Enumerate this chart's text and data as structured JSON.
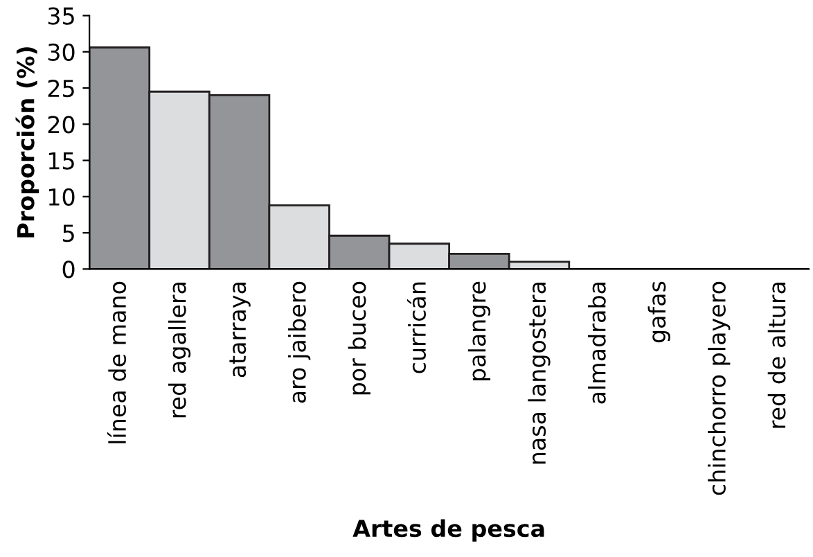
{
  "chart_data": {
    "type": "bar",
    "xlabel": "Artes de pesca",
    "ylabel": "Proporción (%)",
    "categories": [
      "línea de mano",
      "red agallera",
      "atarraya",
      "aro jaibero",
      "por buceo",
      "curricán",
      "palangre",
      "nasa langostera",
      "almadraba",
      "gafas",
      "chinchorro playero",
      "red de altura"
    ],
    "values": [
      30.6,
      24.5,
      24.0,
      8.8,
      4.6,
      3.5,
      2.1,
      1.0,
      0,
      0,
      0,
      0
    ],
    "colors": [
      "#939598",
      "#dcdddf",
      "#939598",
      "#dcdddf",
      "#939598",
      "#dcdddf",
      "#939598",
      "#dcdddf",
      "#939598",
      "#dcdddf",
      "#939598",
      "#dcdddf"
    ],
    "ylim": [
      0,
      35
    ],
    "yticks": [
      0,
      5,
      10,
      15,
      20,
      25,
      30,
      35
    ],
    "grid": false
  }
}
